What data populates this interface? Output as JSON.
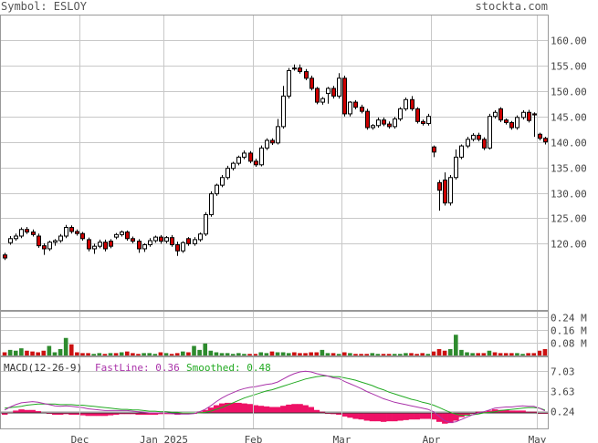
{
  "header": {
    "symbol_label": "Symbol: ESLOY",
    "brand": "stockta.com"
  },
  "colors": {
    "up": "#ffffff",
    "down": "#cc0000",
    "vol_up": "#2e8b2e",
    "vol_down": "#cc1111",
    "grid": "#c8c8c8",
    "fast_line": "#aa33aa",
    "smoothed_line": "#22aa22",
    "histogram": "#ee1166"
  },
  "chart_data": [
    {
      "type": "candlestick",
      "title": "",
      "ylim": [
        107,
        165
      ],
      "y_ticks": [
        "160.00",
        "155.00",
        "150.00",
        "145.00",
        "140.00",
        "135.00",
        "130.00",
        "125.00",
        "120.00"
      ],
      "y_tick_values": [
        160,
        155,
        150,
        145,
        140,
        135,
        130,
        125,
        120
      ],
      "month_labels": [
        "Dec",
        "Jan 2025",
        "Feb",
        "Mar",
        "Apr",
        "May"
      ],
      "month_start_index": [
        14,
        29,
        45,
        61,
        77,
        96
      ],
      "close": [
        117.2,
        121.0,
        121.5,
        122.8,
        122.3,
        121.8,
        119.6,
        119.0,
        120.3,
        120.6,
        121.5,
        123.2,
        122.4,
        122.0,
        121.0,
        119.0,
        119.5,
        120.3,
        119.0,
        119.5,
        121.8,
        122.3,
        121.0,
        120.5,
        119.0,
        119.8,
        120.6,
        121.3,
        120.5,
        121.2,
        119.8,
        118.6,
        120.2,
        120.0,
        120.8,
        121.9,
        125.7,
        129.8,
        131.5,
        133.0,
        134.8,
        135.8,
        137.0,
        137.8,
        136.2,
        135.5,
        138.8,
        140.3,
        139.8,
        143.0,
        149.0,
        154.0,
        154.5,
        153.8,
        152.5,
        150.5,
        147.8,
        148.5,
        150.5,
        149.0,
        152.5,
        145.5,
        147.8,
        146.8,
        146.0,
        142.8,
        143.2,
        144.3,
        143.5,
        143.0,
        144.5,
        146.5,
        148.3,
        146.5,
        144.0,
        143.6,
        145.0,
        138.0,
        130.5,
        128.0,
        133.0,
        137.0,
        139.2,
        140.5,
        141.3,
        140.5,
        138.8,
        145.0,
        145.8,
        144.3,
        143.8,
        142.8,
        144.8,
        145.8,
        144.2,
        145.3,
        140.7,
        140.0
      ],
      "open": [
        117.8,
        120.2,
        121.0,
        121.5,
        122.8,
        122.3,
        121.5,
        119.6,
        119.0,
        120.3,
        120.6,
        121.5,
        123.2,
        122.4,
        122.0,
        120.8,
        119.0,
        119.5,
        120.3,
        120.5,
        121.3,
        121.8,
        122.3,
        121.0,
        120.5,
        119.0,
        119.8,
        120.6,
        121.3,
        120.5,
        121.2,
        119.8,
        118.6,
        121.0,
        120.0,
        120.8,
        121.9,
        125.7,
        129.8,
        131.5,
        133.0,
        134.8,
        135.8,
        137.0,
        137.8,
        136.2,
        135.5,
        138.8,
        140.3,
        139.8,
        143.0,
        149.0,
        154.5,
        154.5,
        153.8,
        152.5,
        150.5,
        147.8,
        149.5,
        150.5,
        149.0,
        152.5,
        145.5,
        147.8,
        146.8,
        146.0,
        142.8,
        143.2,
        144.3,
        143.5,
        143.0,
        144.5,
        146.5,
        148.3,
        146.5,
        144.0,
        143.6,
        139.0,
        132.0,
        132.5,
        128.0,
        133.0,
        137.0,
        139.2,
        140.5,
        141.3,
        140.5,
        138.8,
        145.0,
        146.5,
        144.3,
        143.8,
        142.8,
        144.8,
        145.8,
        145.5,
        141.5,
        140.7
      ],
      "high": [
        118.2,
        121.5,
        122.0,
        123.2,
        123.3,
        122.8,
        122.0,
        120.1,
        120.6,
        120.9,
        121.9,
        123.7,
        123.6,
        122.8,
        122.3,
        121.2,
        120.0,
        120.8,
        120.8,
        120.9,
        122.1,
        122.6,
        122.6,
        121.4,
        120.9,
        120.1,
        121.1,
        121.6,
        121.7,
        121.5,
        121.7,
        120.4,
        120.5,
        121.3,
        121.3,
        122.2,
        126.2,
        130.3,
        131.8,
        133.5,
        135.3,
        136.1,
        137.3,
        138.3,
        138.2,
        136.7,
        139.3,
        140.7,
        140.7,
        144.5,
        151.0,
        154.5,
        155.2,
        155.2,
        154.3,
        153.0,
        150.8,
        148.8,
        150.8,
        151.0,
        153.5,
        153.0,
        148.0,
        148.2,
        147.3,
        146.5,
        143.5,
        144.8,
        144.8,
        144.0,
        144.9,
        146.8,
        148.7,
        149.0,
        146.8,
        144.4,
        145.5,
        139.3,
        132.5,
        134.0,
        133.5,
        138.5,
        139.5,
        141.0,
        141.7,
        141.8,
        140.9,
        145.5,
        146.2,
        146.8,
        144.6,
        144.1,
        145.2,
        146.2,
        146.3,
        145.8,
        141.8,
        141.0
      ],
      "low": [
        116.8,
        119.8,
        120.6,
        121.1,
        121.9,
        121.4,
        119.2,
        117.8,
        118.6,
        119.6,
        120.2,
        121.1,
        122.0,
        121.6,
        120.6,
        118.5,
        118.0,
        119.1,
        118.5,
        119.1,
        120.9,
        121.4,
        120.6,
        120.1,
        118.2,
        118.4,
        119.4,
        120.2,
        120.0,
        120.1,
        119.4,
        117.6,
        118.2,
        119.6,
        119.6,
        120.4,
        121.5,
        125.3,
        129.4,
        131.1,
        132.6,
        134.4,
        135.4,
        136.6,
        135.8,
        135.1,
        135.2,
        138.4,
        139.4,
        139.5,
        142.6,
        148.5,
        154.0,
        153.4,
        152.1,
        150.1,
        147.4,
        147.3,
        147.5,
        148.5,
        148.5,
        145.0,
        145.0,
        146.4,
        145.6,
        142.4,
        142.4,
        142.8,
        143.1,
        142.6,
        142.6,
        144.1,
        146.1,
        146.1,
        143.6,
        143.2,
        143.2,
        137.0,
        126.5,
        127.5,
        127.5,
        132.6,
        136.6,
        138.8,
        140.1,
        140.1,
        138.4,
        138.5,
        144.6,
        143.9,
        143.4,
        142.4,
        142.4,
        144.4,
        143.8,
        141.0,
        140.3,
        139.5
      ]
    },
    {
      "type": "bar",
      "title": "",
      "ylabel": "",
      "y_ticks": [
        "0.24 M",
        "0.16 M",
        "0.08 M"
      ],
      "y_tick_values": [
        0.24,
        0.16,
        0.08
      ],
      "ylim": [
        0,
        0.28
      ],
      "values": [
        0.02,
        0.035,
        0.03,
        0.045,
        0.03,
        0.025,
        0.02,
        0.03,
        0.06,
        0.02,
        0.04,
        0.11,
        0.07,
        0.02,
        0.015,
        0.015,
        0.01,
        0.015,
        0.01,
        0.015,
        0.015,
        0.02,
        0.025,
        0.015,
        0.01,
        0.015,
        0.015,
        0.01,
        0.02,
        0.015,
        0.01,
        0.015,
        0.025,
        0.02,
        0.06,
        0.035,
        0.075,
        0.03,
        0.02,
        0.015,
        0.015,
        0.01,
        0.015,
        0.01,
        0.01,
        0.01,
        0.02,
        0.015,
        0.025,
        0.02,
        0.02,
        0.015,
        0.02,
        0.015,
        0.015,
        0.02,
        0.02,
        0.035,
        0.015,
        0.015,
        0.01,
        0.02,
        0.015,
        0.01,
        0.01,
        0.01,
        0.015,
        0.01,
        0.01,
        0.01,
        0.01,
        0.01,
        0.015,
        0.015,
        0.01,
        0.015,
        0.01,
        0.025,
        0.04,
        0.03,
        0.04,
        0.13,
        0.035,
        0.02,
        0.015,
        0.015,
        0.015,
        0.03,
        0.02,
        0.015,
        0.015,
        0.015,
        0.015,
        0.01,
        0.015,
        0.015,
        0.03,
        0.04
      ],
      "up": [
        false,
        true,
        true,
        true,
        false,
        false,
        false,
        false,
        true,
        true,
        true,
        true,
        false,
        false,
        false,
        false,
        true,
        true,
        false,
        true,
        false,
        true,
        false,
        false,
        false,
        true,
        true,
        true,
        false,
        true,
        false,
        false,
        true,
        false,
        true,
        true,
        true,
        true,
        true,
        true,
        true,
        true,
        true,
        true,
        false,
        false,
        true,
        true,
        false,
        true,
        true,
        true,
        false,
        false,
        false,
        false,
        false,
        true,
        true,
        false,
        true,
        false,
        true,
        false,
        false,
        false,
        true,
        true,
        false,
        false,
        true,
        true,
        true,
        false,
        false,
        false,
        true,
        false,
        false,
        false,
        true,
        true,
        true,
        true,
        true,
        false,
        false,
        true,
        false,
        false,
        false,
        false,
        true,
        true,
        false,
        false,
        false,
        false
      ]
    },
    {
      "type": "line",
      "title": "",
      "indicator_label": "MACD(12-26-9)",
      "fast_label": "FastLine: 0.36",
      "smoothed_label": "Smoothed: 0.48",
      "y_ticks": [
        "7.03",
        "3.63",
        "0.24"
      ],
      "y_tick_values": [
        7.03,
        3.63,
        0.24
      ],
      "ylim": [
        -2.6,
        9.5
      ],
      "series": [
        {
          "name": "FastLine",
          "values": [
            0.5,
            1.0,
            1.4,
            1.7,
            1.8,
            1.9,
            1.8,
            1.6,
            1.4,
            1.2,
            1.1,
            1.2,
            1.1,
            1.0,
            0.9,
            0.7,
            0.6,
            0.5,
            0.4,
            0.4,
            0.4,
            0.4,
            0.4,
            0.3,
            0.2,
            0.1,
            0.0,
            0.0,
            0.0,
            0.0,
            -0.1,
            -0.2,
            -0.2,
            -0.2,
            -0.1,
            0.2,
            0.6,
            1.2,
            1.9,
            2.5,
            3.0,
            3.4,
            3.8,
            4.1,
            4.3,
            4.4,
            4.6,
            4.8,
            4.9,
            5.2,
            5.7,
            6.2,
            6.6,
            6.9,
            7.0,
            6.9,
            6.6,
            6.4,
            6.2,
            5.9,
            5.8,
            5.3,
            4.9,
            4.5,
            4.1,
            3.6,
            3.2,
            2.8,
            2.4,
            2.1,
            1.8,
            1.6,
            1.4,
            1.2,
            1.0,
            0.8,
            0.6,
            0.2,
            -0.6,
            -1.3,
            -1.6,
            -1.5,
            -1.1,
            -0.7,
            -0.3,
            0.0,
            0.2,
            0.5,
            0.8,
            0.9,
            1.0,
            1.0,
            1.1,
            1.2,
            1.1,
            1.1,
            0.8,
            0.36
          ]
        },
        {
          "name": "Smoothed",
          "values": [
            0.8,
            0.9,
            1.0,
            1.1,
            1.3,
            1.4,
            1.5,
            1.5,
            1.5,
            1.5,
            1.4,
            1.4,
            1.4,
            1.3,
            1.3,
            1.2,
            1.1,
            1.0,
            0.9,
            0.8,
            0.7,
            0.6,
            0.6,
            0.5,
            0.5,
            0.4,
            0.3,
            0.3,
            0.2,
            0.2,
            0.1,
            0.1,
            0.0,
            0.0,
            0.0,
            0.0,
            0.1,
            0.3,
            0.6,
            0.9,
            1.3,
            1.7,
            2.1,
            2.5,
            2.8,
            3.1,
            3.4,
            3.7,
            3.9,
            4.2,
            4.5,
            4.8,
            5.1,
            5.4,
            5.7,
            5.9,
            6.1,
            6.2,
            6.2,
            6.1,
            6.1,
            5.9,
            5.7,
            5.5,
            5.2,
            4.9,
            4.6,
            4.2,
            3.9,
            3.5,
            3.2,
            2.9,
            2.6,
            2.3,
            2.1,
            1.8,
            1.6,
            1.3,
            0.9,
            0.5,
            0.1,
            -0.2,
            -0.4,
            -0.4,
            -0.3,
            -0.2,
            0.0,
            0.1,
            0.2,
            0.4,
            0.5,
            0.6,
            0.7,
            0.8,
            0.9,
            0.9,
            0.8,
            0.48
          ]
        }
      ]
    }
  ]
}
